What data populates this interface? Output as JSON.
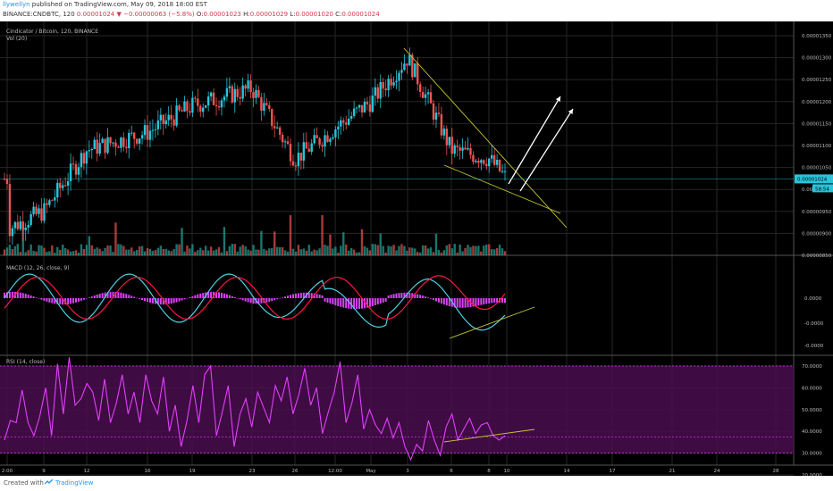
{
  "header": {
    "author": "llywellyn",
    "published": " published on TradingView.com, May 09, 2018 18:00 EST",
    "symbol": "BINANCE:CNDBTC, 120",
    "last": "0.00001024",
    "change": "▼ −0.00000063 (−5.8%)",
    "o_label": "O:",
    "o": "0.00001023",
    "h_label": "H:",
    "h": "0.00001029",
    "l_label": "L:",
    "l": "0.00001020",
    "c_label": "C:",
    "c": "0.00001024"
  },
  "footer": {
    "created_with": "Created with",
    "brand": "TradingView"
  },
  "panels": {
    "price_title": "Cindicator / Bitcoin, 120, BINANCE",
    "vol_title": "Vol (20)",
    "macd_title": "MACD (12, 26, close, 9)",
    "rsi_title": "RSI (14, close)"
  },
  "colors": {
    "up": "#26a69a",
    "down": "#ef5350",
    "teal": "#26c6da",
    "macd_line": "#4dd0e1",
    "signal_line": "#ff1744",
    "histogram": "#e040fb",
    "rsi": "#e040fb",
    "rsi_band": "#4a0d4f",
    "trendline": "#c8c832",
    "arrow": "#ffffff",
    "grid": "#262626"
  },
  "chart_data": [
    {
      "type": "candlestick",
      "title": "Cindicator / Bitcoin, 120, BINANCE",
      "x_ticks": [
        "2:00",
        "9",
        "12",
        "16",
        "19",
        "23",
        "26",
        "12:00",
        "May",
        "3",
        "6",
        "8",
        "10",
        "14",
        "17",
        "21",
        "24",
        "28"
      ],
      "y_ticks": [
        "0.00001350",
        "0.00001300",
        "0.00001250",
        "0.00001200",
        "0.00001150",
        "0.00001100",
        "0.00001050",
        "0.00001000",
        "0.00000950",
        "0.00000900",
        "0.00000850"
      ],
      "last_price_label": "0.00001024",
      "countdown_label": "58:54",
      "price_path": [
        [
          "2:00",
          9.1e-06
        ],
        [
          "9",
          9.5e-06
        ],
        [
          "12",
          1.09e-05
        ],
        [
          "16",
          1.13e-05
        ],
        [
          "19",
          1.19e-05
        ],
        [
          "23",
          1.23e-05
        ],
        [
          "26",
          1.07e-05
        ],
        [
          "12:00",
          1.14e-05
        ],
        [
          "May",
          1.2e-05
        ],
        [
          "3",
          1.3e-05
        ],
        [
          "6",
          1.09e-05
        ],
        [
          "8",
          1.07e-05
        ],
        [
          "10",
          1.024e-05
        ]
      ],
      "annotations": [
        "falling wedge trendlines",
        "two white arrows"
      ]
    },
    {
      "type": "bar",
      "title": "Vol (20)"
    },
    {
      "type": "line",
      "title": "MACD (12, 26, close, 9)",
      "y_ticks": [
        "0.0000",
        "-0.0000",
        "-0.0000"
      ]
    },
    {
      "type": "line",
      "title": "RSI (14, close)",
      "y_ticks": [
        "70.0000",
        "60.0000",
        "50.0000",
        "40.0000",
        "30.0000",
        "20.0000"
      ],
      "ylim": [
        20,
        75
      ],
      "band": [
        30,
        70
      ],
      "values": [
        36,
        45,
        44,
        59,
        44,
        38,
        47,
        60,
        38,
        71,
        48,
        74,
        52,
        55,
        62,
        58,
        45,
        64,
        44,
        53,
        66,
        48,
        58,
        44,
        66,
        54,
        48,
        65,
        40,
        52,
        33,
        45,
        61,
        44,
        66,
        70,
        38,
        49,
        61,
        33,
        48,
        55,
        42,
        58,
        51,
        44,
        61,
        54,
        65,
        48,
        57,
        69,
        52,
        60,
        39,
        49,
        58,
        72,
        44,
        53,
        66,
        41,
        50,
        43,
        39,
        46,
        37,
        44,
        33,
        27,
        34,
        31,
        45,
        36,
        29,
        42,
        48,
        36,
        41,
        46,
        39,
        43,
        44,
        38,
        36,
        38
      ]
    }
  ]
}
